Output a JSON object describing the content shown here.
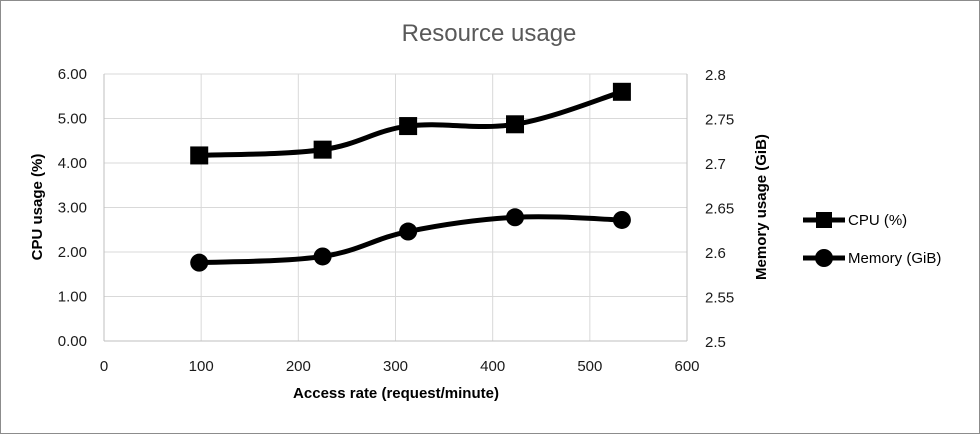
{
  "chart_data": {
    "type": "line",
    "title": "Resource usage",
    "xlabel": "Access rate (request/minute)",
    "ylabel": "CPU usage (%)",
    "y2label": "Memory usage (GiB)",
    "xlim": [
      0,
      600
    ],
    "ylim": [
      0,
      6
    ],
    "y2lim": [
      2.5,
      2.8
    ],
    "xticks": [
      "0",
      "100",
      "200",
      "300",
      "400",
      "500",
      "600"
    ],
    "yticks": [
      "0.00",
      "1.00",
      "2.00",
      "3.00",
      "4.00",
      "5.00",
      "6.00"
    ],
    "y2ticks": [
      "2.5",
      "2.55",
      "2.6",
      "2.65",
      "2.7",
      "2.75",
      "2.8"
    ],
    "grid": true,
    "legend_position": "right",
    "series": [
      {
        "name": "CPU (%)",
        "axis": "left",
        "marker": "square",
        "color": "#000000",
        "x": [
          98,
          225,
          313,
          423,
          533
        ],
        "y": [
          4.17,
          4.3,
          4.83,
          4.87,
          5.6
        ]
      },
      {
        "name": "Memory (GiB)",
        "axis": "right",
        "marker": "circle",
        "color": "#000000",
        "x": [
          98,
          225,
          313,
          423,
          533
        ],
        "y": [
          2.588,
          2.595,
          2.623,
          2.639,
          2.636
        ]
      }
    ]
  }
}
